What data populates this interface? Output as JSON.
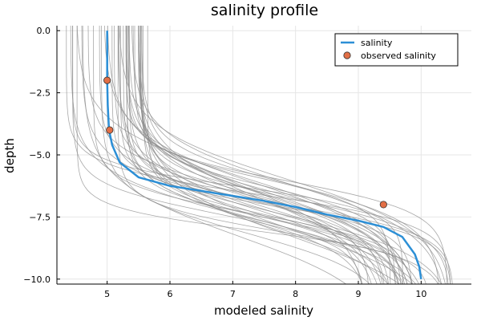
{
  "chart_data": {
    "type": "line",
    "title": "salinity profile",
    "xlabel": "modeled salinity",
    "ylabel": "depth",
    "xlim": [
      4.2,
      10.8
    ],
    "ylim": [
      -10.2,
      0.2
    ],
    "x_ticks": [
      5,
      6,
      7,
      8,
      9,
      10
    ],
    "y_ticks": [
      0.0,
      -2.5,
      -5.0,
      -7.5,
      -10.0
    ],
    "y_tick_labels": [
      "0.0",
      "−2.5",
      "−5.0",
      "−7.5",
      "−10.0"
    ],
    "grid": true,
    "legend_position": "top-right",
    "ensemble_color": "#8c8c8c",
    "series": [
      {
        "name": "salinity",
        "kind": "line",
        "color": "#2c8fd6",
        "points": [
          [
            5.0,
            0.0
          ],
          [
            5.0,
            -1.0
          ],
          [
            5.0,
            -2.0
          ],
          [
            5.01,
            -3.0
          ],
          [
            5.03,
            -4.0
          ],
          [
            5.08,
            -4.6
          ],
          [
            5.2,
            -5.3
          ],
          [
            5.5,
            -5.9
          ],
          [
            6.0,
            -6.25
          ],
          [
            6.5,
            -6.45
          ],
          [
            7.0,
            -6.65
          ],
          [
            7.5,
            -6.85
          ],
          [
            8.0,
            -7.1
          ],
          [
            8.5,
            -7.4
          ],
          [
            9.0,
            -7.65
          ],
          [
            9.4,
            -7.9
          ],
          [
            9.7,
            -8.3
          ],
          [
            9.9,
            -9.0
          ],
          [
            9.97,
            -9.5
          ],
          [
            10.0,
            -10.0
          ]
        ]
      },
      {
        "name": "observed salinity",
        "kind": "scatter",
        "color": "#e26f46",
        "points": [
          [
            5.0,
            -2.0
          ],
          [
            5.04,
            -4.0
          ],
          [
            9.4,
            -7.0
          ]
        ]
      }
    ]
  }
}
